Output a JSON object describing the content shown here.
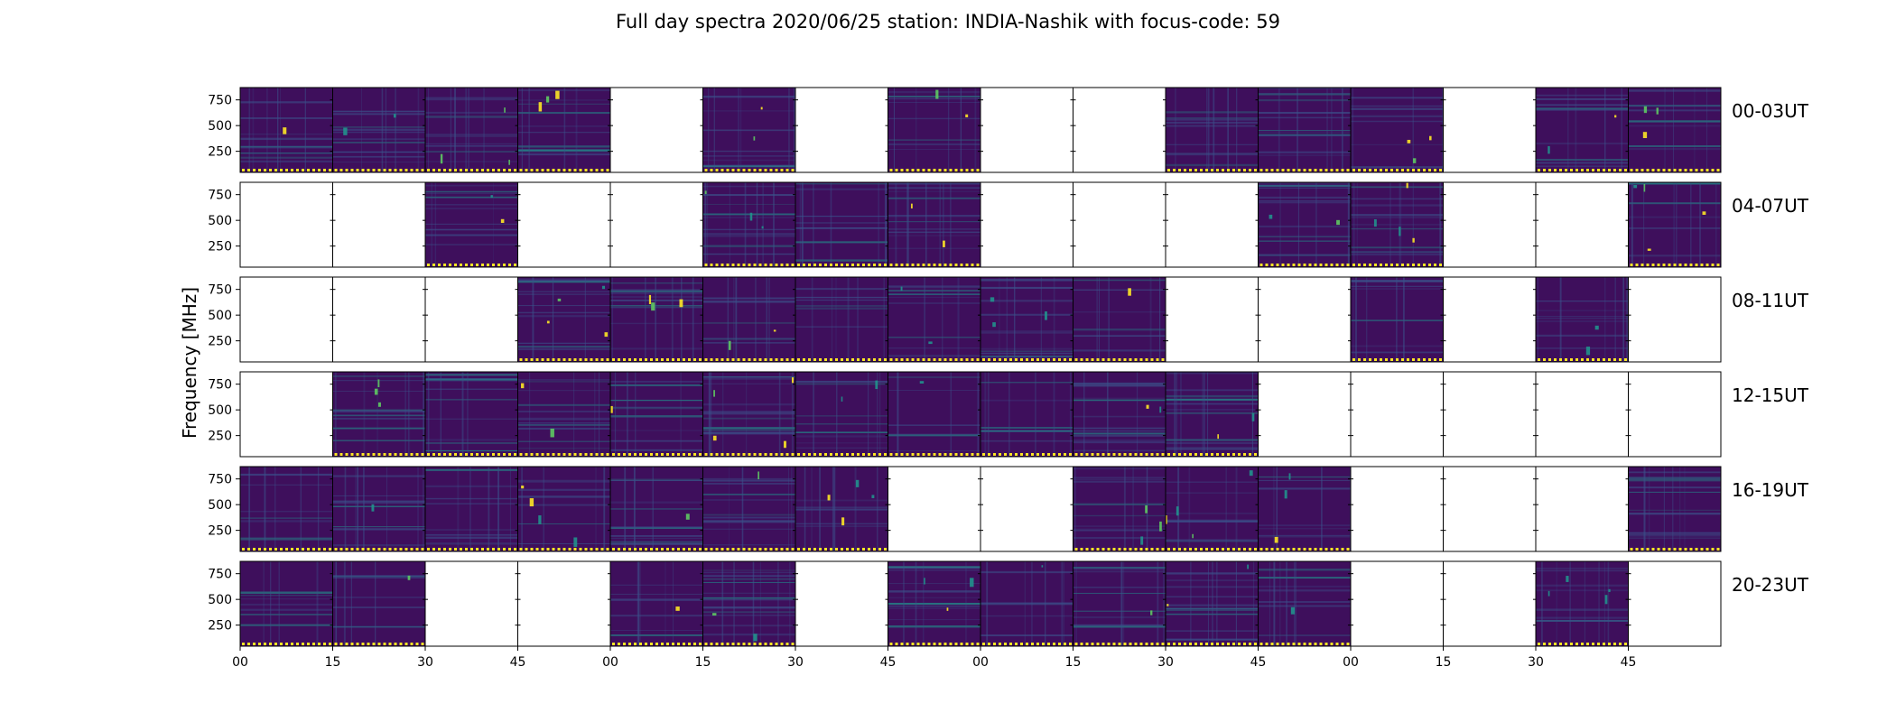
{
  "chart_data": {
    "type": "heatmap",
    "title": "Full day spectra 2020/06/25 station: INDIA-Nashik with focus-code: 59",
    "ylabel": "Frequency [MHz]",
    "xlabel": "",
    "yticks": [
      "750",
      "500",
      "250"
    ],
    "ytick_values": [
      750,
      500,
      250
    ],
    "ylim": [
      45,
      870
    ],
    "xticks": [
      "00",
      "15",
      "30",
      "45",
      "00",
      "15",
      "30",
      "45",
      "00",
      "15",
      "30",
      "45",
      "00",
      "15",
      "30",
      "45"
    ],
    "colormap": [
      "#440154",
      "#3b528b",
      "#21918c",
      "#5ec962",
      "#fde725"
    ],
    "background_color": "#3e0f5c",
    "rows": [
      {
        "label": "00-03UT",
        "panels": [
          1,
          1,
          1,
          1,
          0,
          1,
          0,
          1,
          0,
          0,
          1,
          1,
          1,
          0,
          1,
          1
        ]
      },
      {
        "label": "04-07UT",
        "panels": [
          0,
          0,
          1,
          0,
          0,
          1,
          1,
          1,
          0,
          0,
          0,
          1,
          1,
          0,
          0,
          1
        ]
      },
      {
        "label": "08-11UT",
        "panels": [
          0,
          0,
          0,
          1,
          1,
          1,
          1,
          1,
          1,
          1,
          0,
          0,
          1,
          0,
          1,
          0
        ]
      },
      {
        "label": "12-15UT",
        "panels": [
          0,
          1,
          1,
          1,
          1,
          1,
          1,
          1,
          1,
          1,
          1,
          0,
          0,
          0,
          0,
          0
        ]
      },
      {
        "label": "16-19UT",
        "panels": [
          1,
          1,
          1,
          1,
          1,
          1,
          1,
          0,
          0,
          1,
          1,
          1,
          0,
          0,
          0,
          1
        ]
      },
      {
        "label": "20-23UT",
        "panels": [
          1,
          1,
          0,
          0,
          1,
          1,
          0,
          1,
          1,
          1,
          1,
          1,
          0,
          0,
          1,
          0
        ]
      }
    ]
  }
}
